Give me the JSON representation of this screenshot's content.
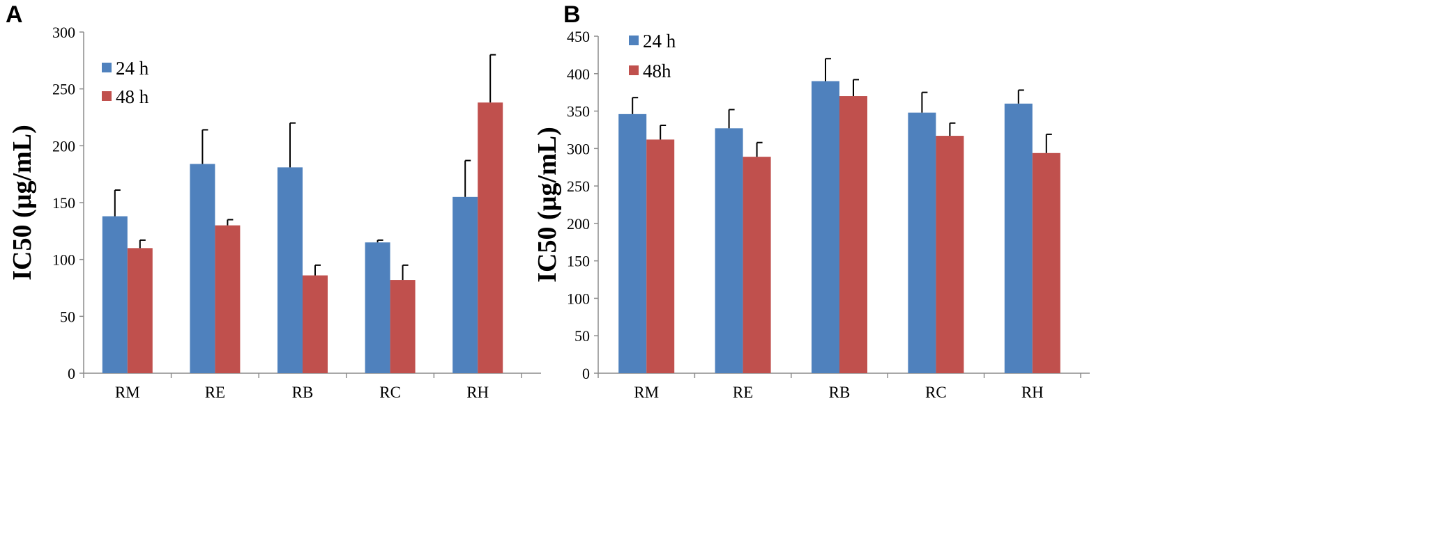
{
  "colors": {
    "series_24h": "#4f81bd",
    "series_48h": "#c0504d"
  },
  "chart_data": [
    {
      "panel": "A",
      "type": "bar",
      "ylabel": "IC50 (µg/mL)",
      "xlabel": "",
      "ylim": [
        0,
        300
      ],
      "yticks": [
        0,
        50,
        100,
        150,
        200,
        250,
        300
      ],
      "categories": [
        "RM",
        "RE",
        "RB",
        "RC",
        "RH"
      ],
      "legend_position": "top-left",
      "series": [
        {
          "name": "24 h",
          "values": [
            138,
            184,
            181,
            115,
            155
          ],
          "errors": [
            23,
            30,
            39,
            2,
            32
          ]
        },
        {
          "name": "48 h",
          "values": [
            110,
            130,
            86,
            82,
            238
          ],
          "errors": [
            7,
            5,
            9,
            13,
            42
          ]
        }
      ]
    },
    {
      "panel": "B",
      "type": "bar",
      "ylabel": "IC50 (µg/mL)",
      "xlabel": "",
      "ylim": [
        0,
        450
      ],
      "yticks": [
        0,
        50,
        100,
        150,
        200,
        250,
        300,
        350,
        400,
        450
      ],
      "categories": [
        "RM",
        "RE",
        "RB",
        "RC",
        "RH"
      ],
      "legend_position": "top-left",
      "series": [
        {
          "name": "24 h",
          "values": [
            346,
            327,
            390,
            348,
            360
          ],
          "errors": [
            22,
            25,
            30,
            27,
            18
          ]
        },
        {
          "name": "48h",
          "values": [
            312,
            289,
            370,
            317,
            294
          ],
          "errors": [
            19,
            19,
            22,
            17,
            25
          ]
        }
      ]
    }
  ]
}
